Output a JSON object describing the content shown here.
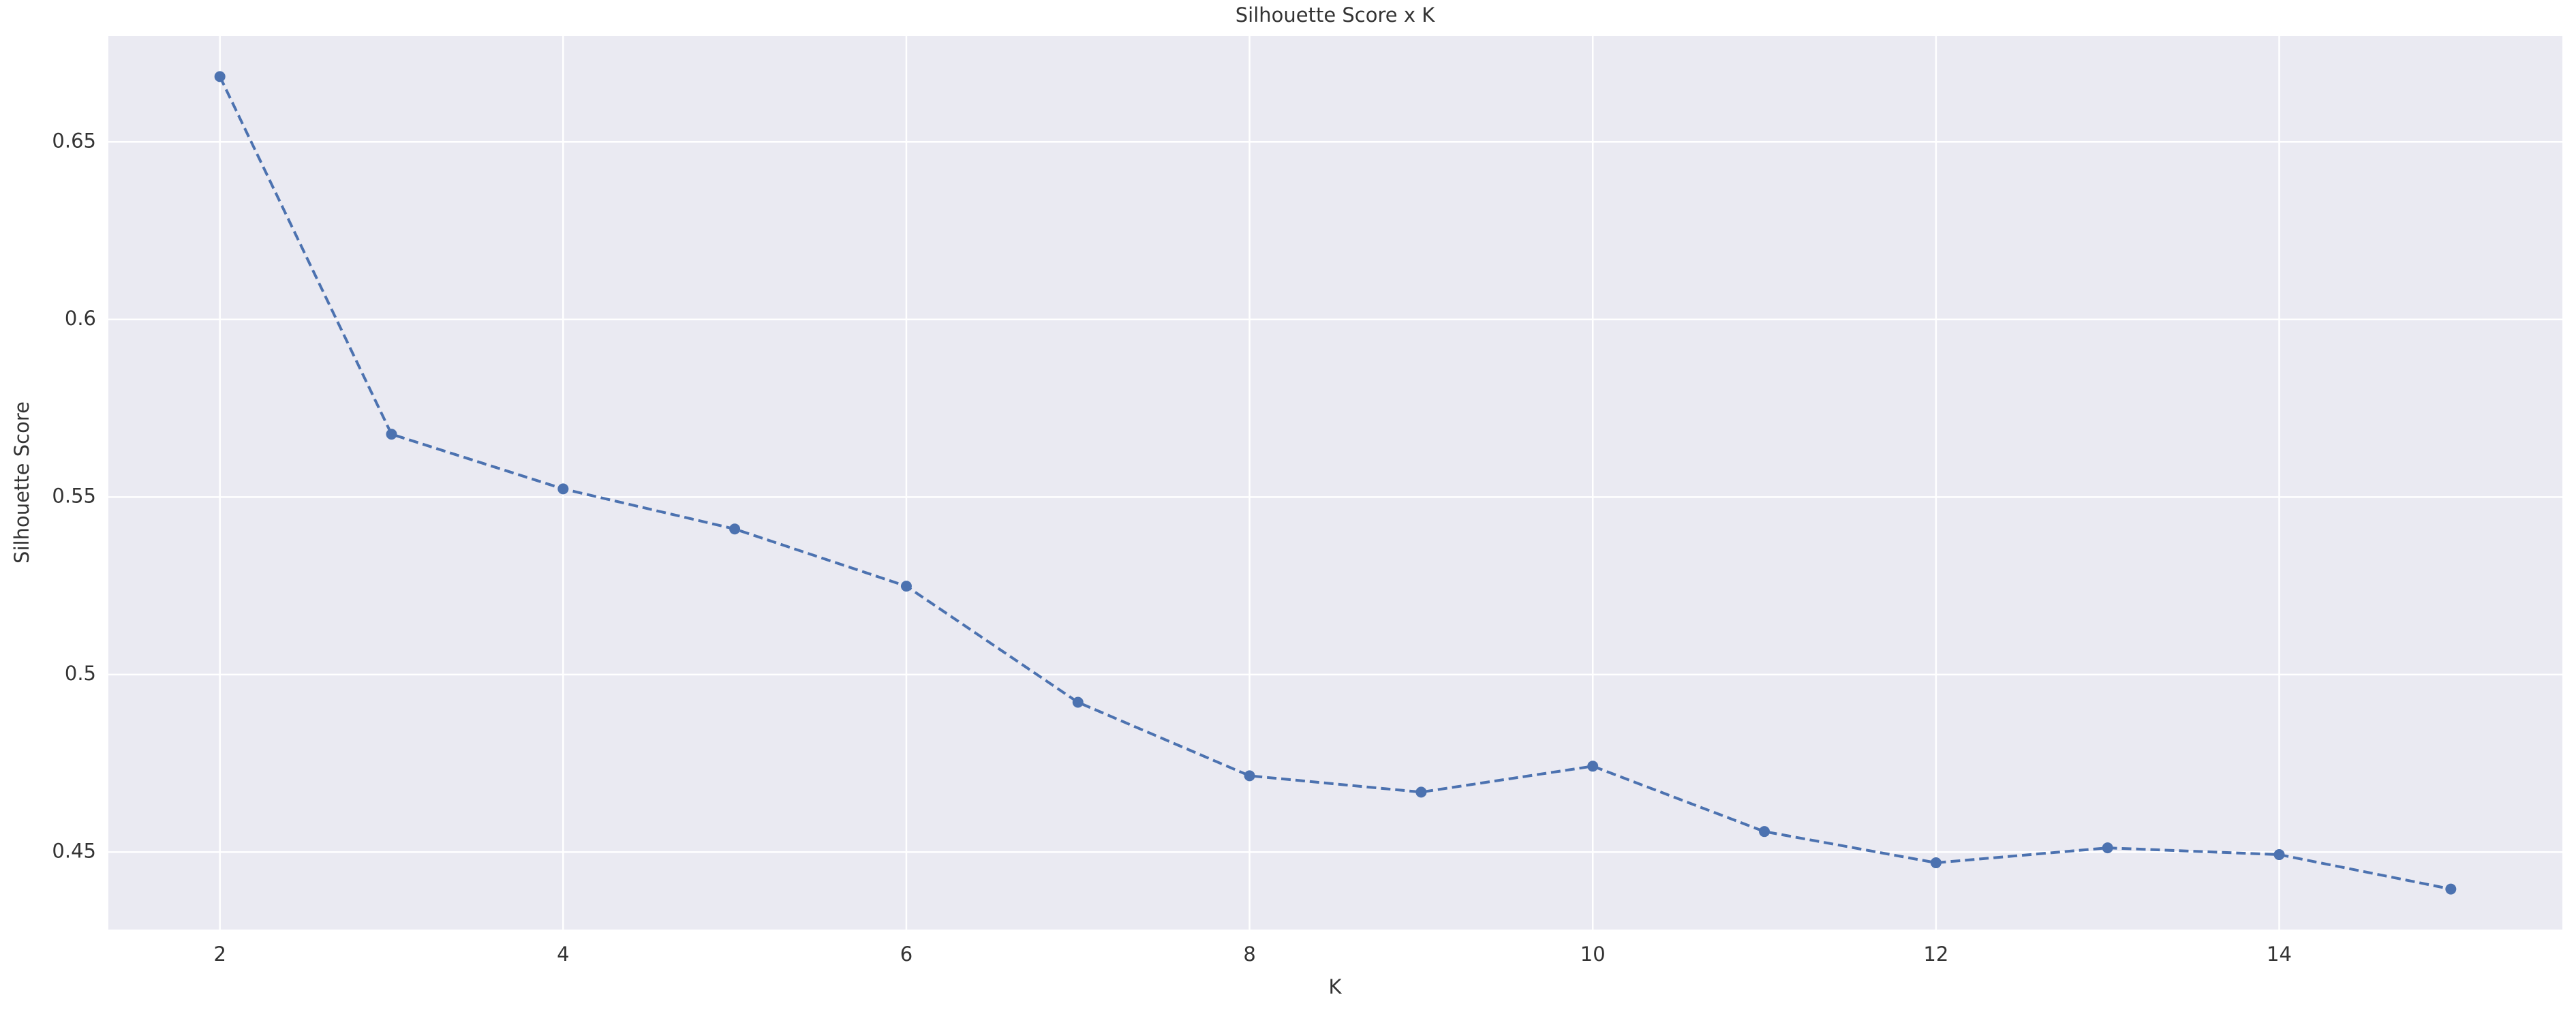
{
  "chart_data": {
    "type": "line",
    "title": "Silhouette Score x K",
    "xlabel": "K",
    "ylabel": "Silhouette Score",
    "x": [
      2,
      3,
      4,
      5,
      6,
      7,
      8,
      9,
      10,
      11,
      12,
      13,
      14,
      15
    ],
    "series": [
      {
        "name": "Silhouette Score",
        "color": "#4c72b0",
        "values": [
          0.6684,
          0.5677,
          0.5523,
          0.541,
          0.5249,
          0.4922,
          0.4715,
          0.4669,
          0.4742,
          0.4558,
          0.447,
          0.4512,
          0.4493,
          0.4396
        ]
      }
    ],
    "xlim": [
      1.35,
      15.65
    ],
    "xticks": [
      2,
      4,
      6,
      8,
      10,
      12,
      14
    ],
    "ylim": [
      0.4282,
      0.6798
    ],
    "yticks": [
      0.45,
      0.5,
      0.55,
      0.6,
      0.65
    ],
    "grid": true
  }
}
